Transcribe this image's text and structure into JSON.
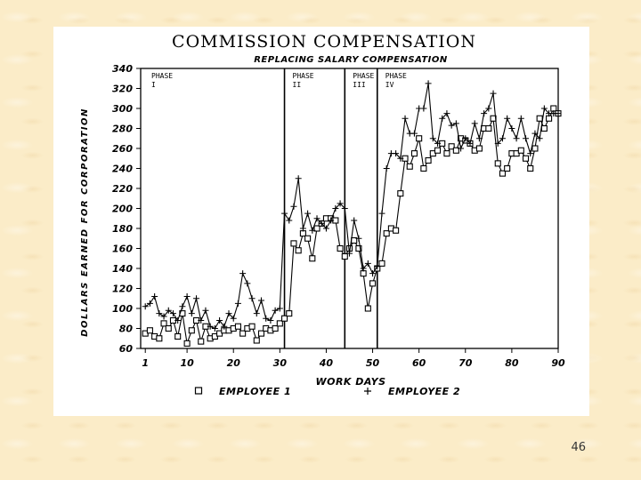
{
  "page_number": "46",
  "chart_data": {
    "type": "line",
    "title": "COMMISSION COMPENSATION",
    "subtitle": "REPLACING SALARY COMPENSATION",
    "xlabel": "WORK DAYS",
    "ylabel": "DOLLARS EARNED FOR CORPORATION",
    "xlim": [
      0,
      90
    ],
    "ylim": [
      60,
      340
    ],
    "xticks": [
      1,
      10,
      20,
      30,
      40,
      50,
      60,
      70,
      80,
      90
    ],
    "yticks": [
      60,
      80,
      100,
      120,
      140,
      160,
      180,
      200,
      220,
      240,
      260,
      280,
      300,
      320,
      340
    ],
    "grid": false,
    "legend_position": "bottom",
    "phases": [
      {
        "label": "PHASE",
        "roman": "I",
        "start": 0
      },
      {
        "label": "PHASE",
        "roman": "II",
        "start": 31
      },
      {
        "label": "PHASE",
        "roman": "III",
        "start": 44
      },
      {
        "label": "PHASE",
        "roman": "IV",
        "start": 51
      }
    ],
    "phase_lines": [
      31,
      44,
      51
    ],
    "series": [
      {
        "name": "EMPLOYEE 1",
        "marker": "square",
        "x": [
          1,
          2,
          3,
          4,
          5,
          6,
          7,
          8,
          9,
          10,
          11,
          12,
          13,
          14,
          15,
          16,
          17,
          18,
          19,
          20,
          21,
          22,
          23,
          24,
          25,
          26,
          27,
          28,
          29,
          30,
          31,
          32,
          33,
          34,
          35,
          36,
          37,
          38,
          39,
          40,
          41,
          42,
          43,
          44,
          45,
          46,
          47,
          48,
          49,
          50,
          51,
          52,
          53,
          54,
          55,
          56,
          57,
          58,
          59,
          60,
          61,
          62,
          63,
          64,
          65,
          66,
          67,
          68,
          69,
          70,
          71,
          72,
          73,
          74,
          75,
          76,
          77,
          78,
          79,
          80,
          81,
          82,
          83,
          84,
          85,
          86,
          87,
          88,
          89,
          90
        ],
        "values": [
          75,
          78,
          72,
          70,
          85,
          80,
          88,
          72,
          95,
          65,
          78,
          88,
          67,
          82,
          70,
          72,
          75,
          78,
          78,
          80,
          82,
          75,
          80,
          82,
          68,
          75,
          80,
          78,
          80,
          85,
          90,
          95,
          165,
          158,
          175,
          170,
          150,
          180,
          185,
          190,
          190,
          188,
          160,
          152,
          160,
          168,
          160,
          135,
          100,
          125,
          140,
          145,
          175,
          180,
          178,
          215,
          250,
          242,
          255,
          270,
          240,
          248,
          255,
          258,
          265,
          255,
          262,
          258,
          270,
          268,
          265,
          258,
          260,
          280,
          280,
          290,
          245,
          235,
          240,
          255,
          255,
          258,
          250,
          240,
          260,
          290,
          280,
          290,
          300,
          295
        ]
      },
      {
        "name": "EMPLOYEE 2",
        "marker": "plus",
        "x": [
          1,
          2,
          3,
          4,
          5,
          6,
          7,
          8,
          9,
          10,
          11,
          12,
          13,
          14,
          15,
          16,
          17,
          18,
          19,
          20,
          21,
          22,
          23,
          24,
          25,
          26,
          27,
          28,
          29,
          30,
          31,
          32,
          33,
          34,
          35,
          36,
          37,
          38,
          39,
          40,
          41,
          42,
          43,
          44,
          45,
          46,
          47,
          48,
          49,
          50,
          51,
          52,
          53,
          54,
          55,
          56,
          57,
          58,
          59,
          60,
          61,
          62,
          63,
          64,
          65,
          66,
          67,
          68,
          69,
          70,
          71,
          72,
          73,
          74,
          75,
          76,
          77,
          78,
          79,
          80,
          81,
          82,
          83,
          84,
          85,
          86,
          87,
          88,
          89,
          90
        ],
        "values": [
          102,
          105,
          112,
          95,
          92,
          98,
          95,
          88,
          102,
          112,
          95,
          110,
          88,
          98,
          82,
          80,
          88,
          82,
          95,
          90,
          105,
          135,
          125,
          110,
          95,
          108,
          90,
          88,
          98,
          100,
          195,
          188,
          202,
          230,
          180,
          195,
          178,
          190,
          185,
          180,
          188,
          200,
          205,
          200,
          155,
          188,
          170,
          140,
          145,
          135,
          142,
          195,
          240,
          255,
          255,
          250,
          290,
          275,
          275,
          300,
          300,
          325,
          270,
          265,
          290,
          295,
          283,
          285,
          260,
          270,
          265,
          285,
          270,
          295,
          300,
          315,
          265,
          270,
          290,
          280,
          270,
          290,
          270,
          255,
          275,
          270,
          300,
          295,
          295,
          295
        ]
      }
    ]
  }
}
